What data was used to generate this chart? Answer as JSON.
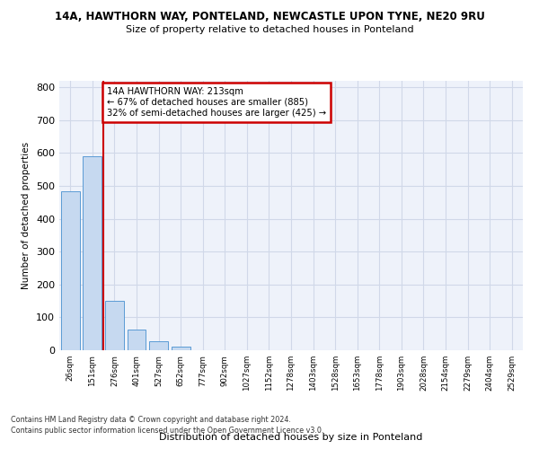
{
  "title1": "14A, HAWTHORN WAY, PONTELAND, NEWCASTLE UPON TYNE, NE20 9RU",
  "title2": "Size of property relative to detached houses in Ponteland",
  "xlabel": "Distribution of detached houses by size in Ponteland",
  "ylabel": "Number of detached properties",
  "bar_values": [
    485,
    590,
    150,
    63,
    27,
    10,
    0,
    0,
    0,
    0,
    0,
    0,
    0,
    0,
    0,
    0,
    0,
    0,
    0,
    0,
    0
  ],
  "bin_labels": [
    "26sqm",
    "151sqm",
    "276sqm",
    "401sqm",
    "527sqm",
    "652sqm",
    "777sqm",
    "902sqm",
    "1027sqm",
    "1152sqm",
    "1278sqm",
    "1403sqm",
    "1528sqm",
    "1653sqm",
    "1778sqm",
    "1903sqm",
    "2028sqm",
    "2154sqm",
    "2279sqm",
    "2404sqm",
    "2529sqm"
  ],
  "bar_color": "#c6d9f0",
  "bar_edge_color": "#5b9bd5",
  "grid_color": "#d0d8e8",
  "vline_x": 1.5,
  "vline_color": "#cc0000",
  "annotation_text": "14A HAWTHORN WAY: 213sqm\n← 67% of detached houses are smaller (885)\n32% of semi-detached houses are larger (425) →",
  "annotation_box_color": "#ffffff",
  "annotation_box_edge_color": "#cc0000",
  "ylim": [
    0,
    820
  ],
  "yticks": [
    0,
    100,
    200,
    300,
    400,
    500,
    600,
    700,
    800
  ],
  "footer1": "Contains HM Land Registry data © Crown copyright and database right 2024.",
  "footer2": "Contains public sector information licensed under the Open Government Licence v3.0.",
  "bg_color": "#eef2fa"
}
